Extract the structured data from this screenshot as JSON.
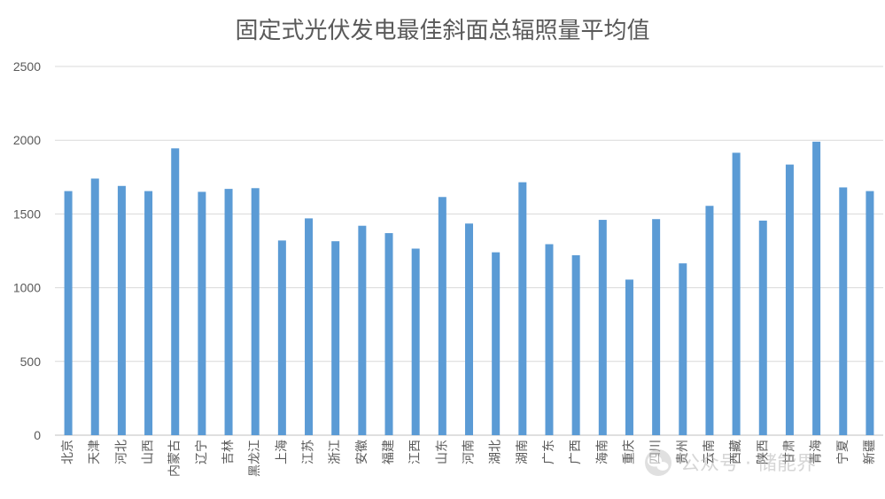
{
  "chart_data": {
    "type": "bar",
    "title": "固定式光伏发电最佳斜面总辐照量平均值",
    "xlabel": "",
    "ylabel": "",
    "ylim": [
      0,
      2500
    ],
    "yticks": [
      "0",
      "500",
      "1000",
      "1500",
      "2000",
      "2500"
    ],
    "grid": true,
    "legend": "none",
    "bar_color": "#5B9BD5",
    "categories": [
      "北京",
      "天津",
      "河北",
      "山西",
      "内蒙古",
      "辽宁",
      "吉林",
      "黑龙江",
      "上海",
      "江苏",
      "浙江",
      "安徽",
      "福建",
      "江西",
      "山东",
      "河南",
      "湖北",
      "湖南",
      "广东",
      "广西",
      "海南",
      "重庆",
      "四川",
      "贵州",
      "云南",
      "西藏",
      "陕西",
      "甘肃",
      "青海",
      "宁夏",
      "新疆"
    ],
    "values": [
      1655,
      1740,
      1690,
      1655,
      1945,
      1650,
      1670,
      1675,
      1320,
      1470,
      1315,
      1420,
      1370,
      1265,
      1615,
      1435,
      1240,
      1715,
      1295,
      1220,
      1460,
      1055,
      1465,
      1165,
      1555,
      1915,
      1455,
      1835,
      1990,
      1680,
      1655
    ]
  },
  "watermark": {
    "text": "公众号 · 储能界"
  }
}
